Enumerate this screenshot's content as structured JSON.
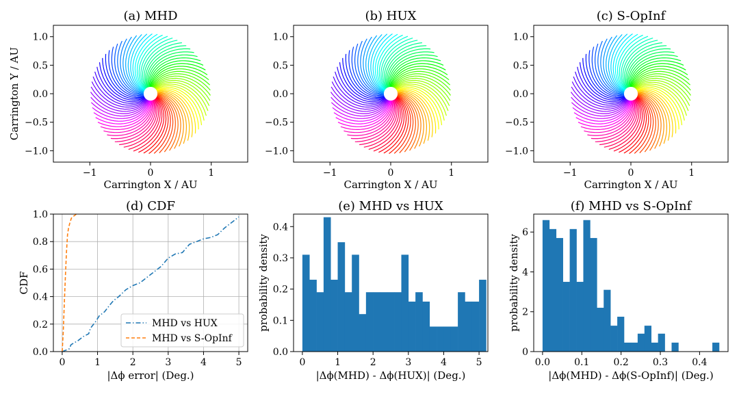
{
  "spiral_panels": [
    {
      "title": "(a) MHD",
      "xlabel": "Carrington X / AU",
      "ylabel": "Carrington Y / AU",
      "xticks": [
        -1,
        0,
        1
      ],
      "yticks": [
        1.0,
        0.5,
        0.0,
        -0.5,
        -1.0
      ],
      "tick_labels_x": [
        "−1",
        "0",
        "1"
      ],
      "tick_labels_y": [
        "1.0",
        "0.5",
        "0.0",
        "−0.5",
        "−1.0"
      ]
    },
    {
      "title": "(b) HUX",
      "xlabel": "Carrington X / AU",
      "ylabel": "",
      "xticks": [
        -1,
        0,
        1
      ],
      "yticks": [
        1.0,
        0.5,
        0.0,
        -0.5,
        -1.0
      ],
      "tick_labels_x": [
        "−1",
        "0",
        "1"
      ],
      "tick_labels_y": [
        "1.0",
        "0.5",
        "0.0",
        "−0.5",
        "−1.0"
      ]
    },
    {
      "title": "(c) S-OpInf",
      "xlabel": "Carrington X / AU",
      "ylabel": "",
      "xticks": [
        -1,
        0,
        1
      ],
      "yticks": [
        1.0,
        0.5,
        0.0,
        -0.5,
        -1.0
      ],
      "tick_labels_x": [
        "−1",
        "0",
        "1"
      ],
      "tick_labels_y": [
        "1.0",
        "0.5",
        "0.0",
        "−0.5",
        "−1.0"
      ]
    }
  ],
  "chart_data": [
    {
      "type": "line",
      "title": "(a) MHD",
      "xlabel": "Carrington X / AU",
      "ylabel": "Carrington Y / AU",
      "xlim": [
        -1.6,
        1.6
      ],
      "ylim": [
        -1.2,
        1.2
      ],
      "n_field_lines": 72,
      "r_inner": 0.12,
      "r_outer": 1.05
    },
    {
      "type": "line",
      "title": "(b) HUX",
      "xlabel": "Carrington X / AU",
      "ylabel": "",
      "xlim": [
        -1.6,
        1.6
      ],
      "ylim": [
        -1.2,
        1.2
      ],
      "n_field_lines": 72,
      "r_inner": 0.12,
      "r_outer": 1.05
    },
    {
      "type": "line",
      "title": "(c) S-OpInf",
      "xlabel": "Carrington X / AU",
      "ylabel": "",
      "xlim": [
        -1.6,
        1.6
      ],
      "ylim": [
        -1.2,
        1.2
      ],
      "n_field_lines": 72,
      "r_inner": 0.12,
      "r_outer": 1.05
    },
    {
      "type": "line",
      "title": "(d) CDF",
      "xlabel": "|Δϕ error| (Deg.)",
      "ylabel": "CDF",
      "xlim": [
        -0.25,
        5.25
      ],
      "ylim": [
        0,
        1
      ],
      "grid": true,
      "legend": "lower-right",
      "xticks": [
        0,
        1,
        2,
        3,
        4,
        5
      ],
      "yticks": [
        0.0,
        0.2,
        0.4,
        0.6,
        0.8,
        1.0
      ],
      "series": [
        {
          "name": "MHD vs HUX",
          "color": "#1f77b4",
          "style": "dashdot",
          "x": [
            0.0,
            0.2,
            0.25,
            0.45,
            0.6,
            0.75,
            0.8,
            0.95,
            1.05,
            1.2,
            1.35,
            1.45,
            1.6,
            1.8,
            2.0,
            2.2,
            2.4,
            2.6,
            2.8,
            3.0,
            3.2,
            3.4,
            3.6,
            3.8,
            4.0,
            4.2,
            4.4,
            4.6,
            4.8,
            5.0
          ],
          "y": [
            0.0,
            0.02,
            0.05,
            0.08,
            0.11,
            0.13,
            0.17,
            0.22,
            0.26,
            0.29,
            0.34,
            0.37,
            0.4,
            0.45,
            0.48,
            0.5,
            0.54,
            0.58,
            0.62,
            0.68,
            0.71,
            0.72,
            0.78,
            0.8,
            0.82,
            0.83,
            0.85,
            0.9,
            0.94,
            0.98
          ]
        },
        {
          "name": "MHD vs S-OpInf",
          "color": "#ff7f0e",
          "style": "dashed",
          "x": [
            0.0,
            0.03,
            0.06,
            0.09,
            0.12,
            0.15,
            0.18,
            0.22,
            0.26,
            0.3,
            0.35,
            0.4,
            0.45
          ],
          "y": [
            0.0,
            0.15,
            0.35,
            0.55,
            0.72,
            0.85,
            0.9,
            0.94,
            0.97,
            0.98,
            0.99,
            1.0,
            1.0
          ]
        }
      ]
    },
    {
      "type": "bar",
      "title": "(e) MHD vs HUX",
      "xlabel": "|Δϕ(MHD) - Δϕ(HUX)| (Deg.)",
      "ylabel": "probability density",
      "bin_start": 0.0,
      "bin_width": 0.2,
      "xlim": [
        -0.25,
        5.25
      ],
      "ylim": [
        0,
        0.44
      ],
      "xticks": [
        0,
        1,
        2,
        3,
        4,
        5
      ],
      "yticks": [
        0.0,
        0.1,
        0.2,
        0.3,
        0.4
      ],
      "color": "#1f77b4",
      "values": [
        0.31,
        0.23,
        0.19,
        0.43,
        0.23,
        0.35,
        0.19,
        0.31,
        0.12,
        0.19,
        0.19,
        0.19,
        0.19,
        0.19,
        0.31,
        0.16,
        0.19,
        0.16,
        0.08,
        0.08,
        0.08,
        0.08,
        0.19,
        0.16,
        0.16,
        0.23
      ]
    },
    {
      "type": "bar",
      "title": "(f) MHD vs S-OpInf",
      "xlabel": "|Δϕ(MHD) - Δϕ(S-OpInf)| (Deg.)",
      "ylabel": "probability density",
      "bin_start": 0.0,
      "bin_width": 0.0173,
      "xlim": [
        -0.0225,
        0.4725
      ],
      "ylim": [
        0,
        6.9
      ],
      "xticks": [
        0.0,
        0.1,
        0.2,
        0.3,
        0.4
      ],
      "yticks": [
        0,
        2,
        4,
        6
      ],
      "color": "#1f77b4",
      "values": [
        6.6,
        6.15,
        5.7,
        3.5,
        6.15,
        3.5,
        6.6,
        5.7,
        2.2,
        3.1,
        1.3,
        1.75,
        0.45,
        0.45,
        0.9,
        1.3,
        0.45,
        0.9,
        0.0,
        0.45,
        0.0,
        0.0,
        0.0,
        0.0,
        0.0,
        0.45
      ]
    }
  ]
}
